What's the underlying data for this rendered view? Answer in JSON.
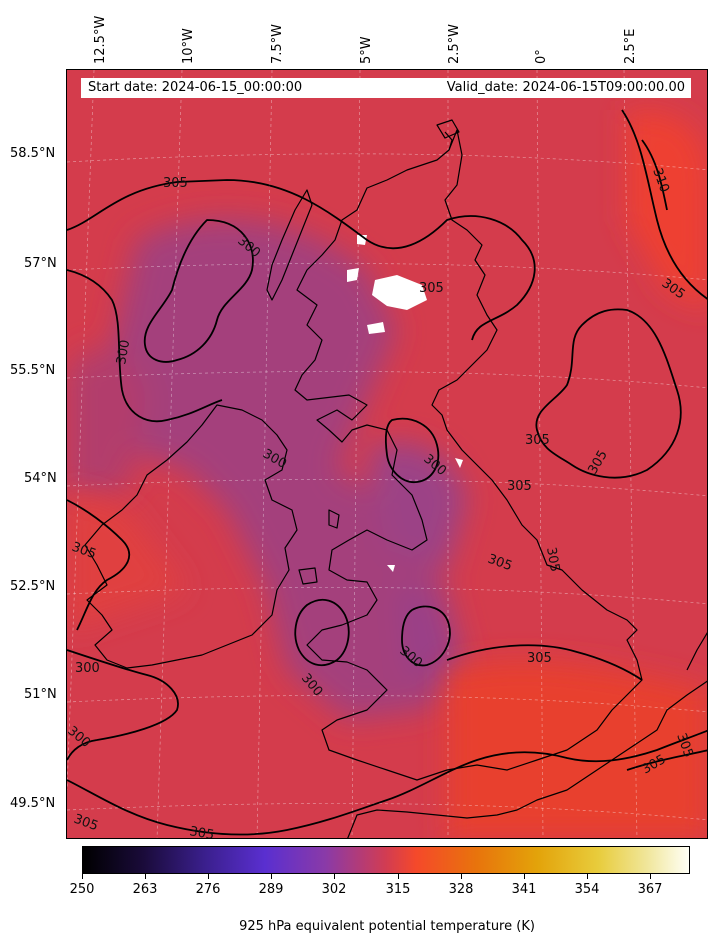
{
  "map": {
    "start_date": "Start date: 2024-06-15_00:00:00",
    "valid_date": "Valid_date: 2024-06-15T09:00:00.00",
    "lon_labels": [
      "12.5°W",
      "10°W",
      "7.5°W",
      "5°W",
      "2.5°W",
      "0°",
      "2.5°E"
    ],
    "lat_labels": [
      "58.5°N",
      "57°N",
      "55.5°N",
      "54°N",
      "52.5°N",
      "51°N",
      "49.5°N"
    ],
    "contour_levels": [
      "300",
      "305",
      "310"
    ],
    "colors": {
      "field_base": "#d43c4c",
      "field_cool": "#a2407e",
      "field_warm": "#ee4030",
      "coastline": "#000000",
      "contour": "#000000",
      "masked": "#ffffff"
    }
  },
  "colorbar": {
    "label": "925 hPa equivalent potential temperature (K)",
    "ticks": [
      "250",
      "263",
      "276",
      "289",
      "302",
      "315",
      "328",
      "341",
      "354",
      "367"
    ],
    "colormap": "CMRmap"
  }
}
